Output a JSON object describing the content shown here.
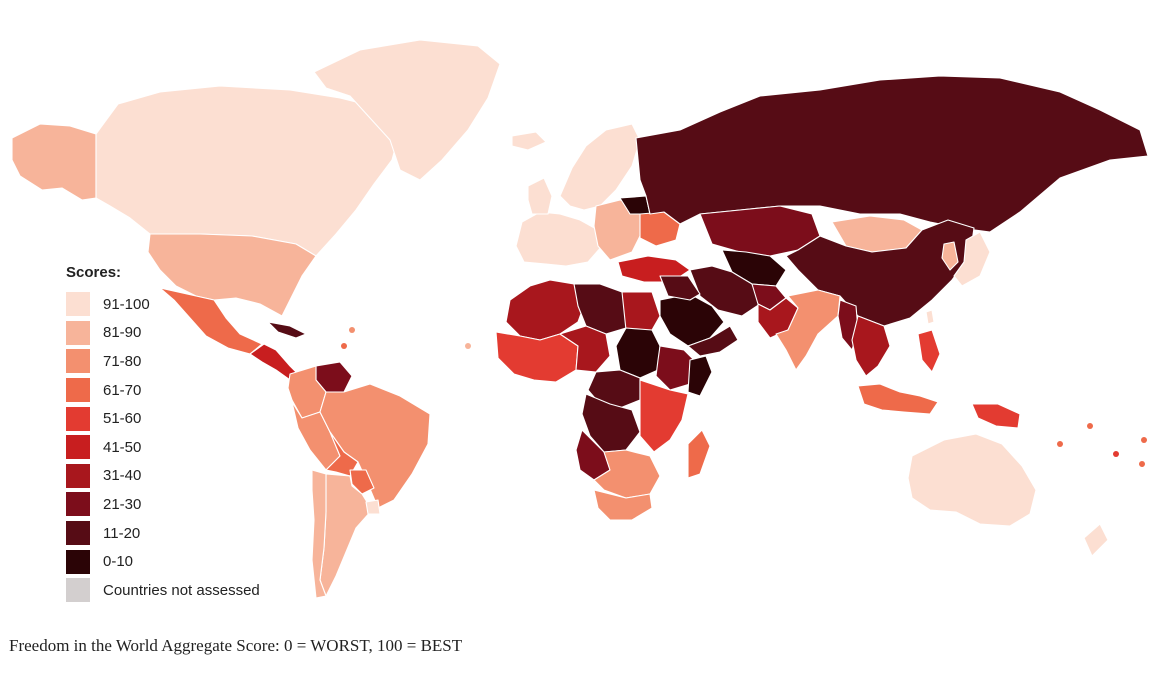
{
  "legend": {
    "title": "Scores:",
    "items": [
      {
        "label": "91-100",
        "color": "#fcdfd2"
      },
      {
        "label": "81-90",
        "color": "#f7b49a"
      },
      {
        "label": "71-80",
        "color": "#f3906f"
      },
      {
        "label": "61-70",
        "color": "#ee6a4a"
      },
      {
        "label": "51-60",
        "color": "#e33b31"
      },
      {
        "label": "41-50",
        "color": "#c81e1f"
      },
      {
        "label": "31-40",
        "color": "#a8171d"
      },
      {
        "label": "21-30",
        "color": "#7c0d1b"
      },
      {
        "label": "11-20",
        "color": "#560c15"
      },
      {
        "label": "0-10",
        "color": "#2b0406"
      },
      {
        "label": "Countries not assessed",
        "color": "#d3cfcf"
      }
    ]
  },
  "caption": "Freedom in the World Aggregate Score: 0 = WORST, 100 = BEST",
  "regions": [
    {
      "name": "alaska",
      "color": "#f7b49a"
    },
    {
      "name": "canada",
      "color": "#fcdfd2"
    },
    {
      "name": "greenland",
      "color": "#fcdfd2"
    },
    {
      "name": "usa",
      "color": "#f7b49a"
    },
    {
      "name": "mexico",
      "color": "#ee6a4a"
    },
    {
      "name": "central-america",
      "color": "#c81e1f"
    },
    {
      "name": "cuba",
      "color": "#560c15"
    },
    {
      "name": "venezuela",
      "color": "#7c0d1b"
    },
    {
      "name": "colombia",
      "color": "#f3906f"
    },
    {
      "name": "peru",
      "color": "#f3906f"
    },
    {
      "name": "brazil",
      "color": "#f3906f"
    },
    {
      "name": "bolivia",
      "color": "#ee6a4a"
    },
    {
      "name": "paraguay",
      "color": "#ee6a4a"
    },
    {
      "name": "argentina",
      "color": "#f7b49a"
    },
    {
      "name": "chile",
      "color": "#f7b49a"
    },
    {
      "name": "uruguay",
      "color": "#fcdfd2"
    },
    {
      "name": "western-europe",
      "color": "#fcdfd2"
    },
    {
      "name": "iceland",
      "color": "#fcdfd2"
    },
    {
      "name": "uk",
      "color": "#fcdfd2"
    },
    {
      "name": "scandinavia",
      "color": "#fcdfd2"
    },
    {
      "name": "eastern-europe",
      "color": "#f7b49a"
    },
    {
      "name": "belarus",
      "color": "#2b0406"
    },
    {
      "name": "ukraine",
      "color": "#ee6a4a"
    },
    {
      "name": "russia",
      "color": "#560c15"
    },
    {
      "name": "kazakhstan",
      "color": "#7c0d1b"
    },
    {
      "name": "mongolia",
      "color": "#f7b49a"
    },
    {
      "name": "china",
      "color": "#560c15"
    },
    {
      "name": "turkey",
      "color": "#c81e1f"
    },
    {
      "name": "central-asia",
      "color": "#2b0406"
    },
    {
      "name": "iran",
      "color": "#560c15"
    },
    {
      "name": "afghanistan",
      "color": "#7c0d1b"
    },
    {
      "name": "pakistan",
      "color": "#a8171d"
    },
    {
      "name": "india",
      "color": "#f3906f"
    },
    {
      "name": "myanmar",
      "color": "#7c0d1b"
    },
    {
      "name": "southeast-asia",
      "color": "#a8171d"
    },
    {
      "name": "japan",
      "color": "#fcdfd2"
    },
    {
      "name": "korea",
      "color": "#f7b49a"
    },
    {
      "name": "taiwan",
      "color": "#fcdfd2"
    },
    {
      "name": "philippines",
      "color": "#e33b31"
    },
    {
      "name": "indonesia",
      "color": "#ee6a4a"
    },
    {
      "name": "papua-new-guinea",
      "color": "#e33b31"
    },
    {
      "name": "australia",
      "color": "#fcdfd2"
    },
    {
      "name": "new-zealand",
      "color": "#fcdfd2"
    },
    {
      "name": "saudi-arabia",
      "color": "#2b0406"
    },
    {
      "name": "iraq-syria",
      "color": "#560c15"
    },
    {
      "name": "yemen-oman",
      "color": "#560c15"
    },
    {
      "name": "north-africa-west",
      "color": "#a8171d"
    },
    {
      "name": "libya",
      "color": "#560c15"
    },
    {
      "name": "egypt",
      "color": "#a8171d"
    },
    {
      "name": "west-africa",
      "color": "#e33b31"
    },
    {
      "name": "sahel",
      "color": "#a8171d"
    },
    {
      "name": "sudan",
      "color": "#2b0406"
    },
    {
      "name": "ethiopia",
      "color": "#7c0d1b"
    },
    {
      "name": "horn-of-africa",
      "color": "#2b0406"
    },
    {
      "name": "central-africa",
      "color": "#560c15"
    },
    {
      "name": "dr-congo",
      "color": "#560c15"
    },
    {
      "name": "east-africa",
      "color": "#e33b31"
    },
    {
      "name": "angola",
      "color": "#7c0d1b"
    },
    {
      "name": "southern-africa",
      "color": "#f3906f"
    },
    {
      "name": "south-africa",
      "color": "#f3906f"
    },
    {
      "name": "madagascar",
      "color": "#ee6a4a"
    }
  ]
}
